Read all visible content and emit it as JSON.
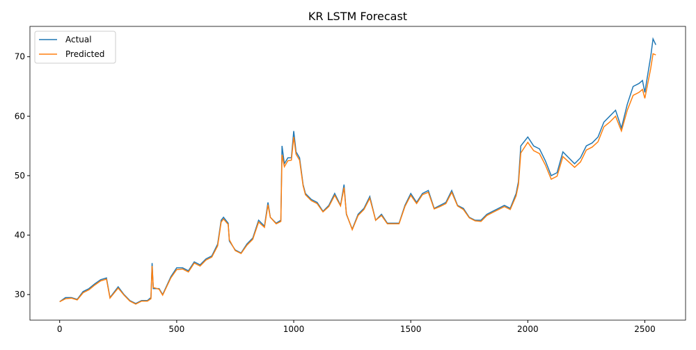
{
  "chart_data": {
    "type": "line",
    "title": "KR LSTM Forecast",
    "x": [
      0,
      25,
      50,
      75,
      100,
      125,
      150,
      175,
      200,
      215,
      250,
      275,
      300,
      325,
      350,
      375,
      390,
      395,
      400,
      425,
      440,
      475,
      500,
      525,
      550,
      575,
      600,
      625,
      650,
      675,
      690,
      700,
      720,
      725,
      750,
      775,
      800,
      825,
      850,
      875,
      890,
      900,
      925,
      945,
      950,
      960,
      975,
      990,
      1000,
      1010,
      1025,
      1040,
      1050,
      1075,
      1100,
      1125,
      1150,
      1175,
      1200,
      1215,
      1225,
      1250,
      1275,
      1300,
      1325,
      1350,
      1375,
      1400,
      1425,
      1450,
      1475,
      1500,
      1525,
      1550,
      1575,
      1600,
      1625,
      1650,
      1675,
      1700,
      1725,
      1750,
      1775,
      1800,
      1825,
      1850,
      1875,
      1900,
      1925,
      1950,
      1960,
      1970,
      2000,
      2025,
      2050,
      2075,
      2100,
      2125,
      2150,
      2175,
      2200,
      2225,
      2250,
      2275,
      2300,
      2325,
      2350,
      2375,
      2400,
      2425,
      2450,
      2475,
      2490,
      2500,
      2525,
      2535,
      2547
    ],
    "series": [
      {
        "name": "Actual",
        "color": "#1f77b4",
        "values": [
          28.8,
          29.5,
          29.5,
          29.2,
          30.5,
          31,
          31.8,
          32.5,
          32.8,
          29.5,
          31.3,
          30,
          29,
          28.5,
          29,
          29,
          29.5,
          35.3,
          31,
          31,
          30,
          33,
          34.5,
          34.5,
          34,
          35.5,
          35,
          36,
          36.5,
          38.5,
          42.5,
          43,
          42,
          39,
          37.5,
          37,
          38.5,
          39.5,
          42.5,
          41.5,
          45.5,
          43,
          42,
          42.5,
          55,
          52,
          53,
          53,
          57.5,
          54,
          53,
          48.5,
          47,
          46,
          45.5,
          44,
          45,
          47,
          45,
          48.5,
          43.5,
          41,
          43.5,
          44.5,
          46.5,
          42.5,
          43.5,
          42,
          42,
          42,
          45,
          47,
          45.5,
          47,
          47.5,
          44.5,
          45,
          45.5,
          47.5,
          45,
          44.5,
          43,
          42.5,
          42.5,
          43.5,
          44,
          44.5,
          45,
          44.5,
          47,
          49,
          55,
          56.5,
          55,
          54.5,
          52.5,
          50,
          50.5,
          54,
          53,
          52,
          53,
          55,
          55.5,
          56.5,
          59,
          60,
          61,
          58,
          62,
          65,
          65.5,
          66,
          64,
          70,
          73,
          72
        ]
      },
      {
        "name": "Predicted",
        "color": "#ff7f0e",
        "values": [
          28.8,
          29.3,
          29.4,
          29.1,
          30.3,
          30.8,
          31.6,
          32.3,
          32.6,
          29.4,
          31.1,
          29.9,
          28.9,
          28.4,
          28.9,
          28.9,
          29.3,
          34.8,
          31.2,
          30.9,
          29.9,
          32.8,
          34.2,
          34.3,
          33.8,
          35.3,
          34.8,
          35.8,
          36.3,
          38.2,
          42.2,
          42.7,
          41.8,
          39.2,
          37.4,
          36.9,
          38.3,
          39.3,
          42.2,
          41.3,
          45.1,
          43,
          41.9,
          42.3,
          53.5,
          51.5,
          52.5,
          52.6,
          56.5,
          53.6,
          52.6,
          48.3,
          46.8,
          45.8,
          45.3,
          43.9,
          44.8,
          46.7,
          44.9,
          48,
          43.6,
          40.9,
          43.3,
          44.3,
          46.2,
          42.5,
          43.3,
          41.9,
          41.9,
          41.9,
          44.8,
          46.7,
          45.3,
          46.8,
          47.2,
          44.4,
          44.8,
          45.3,
          47.2,
          44.9,
          44.3,
          42.9,
          42.4,
          42.3,
          43.3,
          43.8,
          44.3,
          44.8,
          44.3,
          46.6,
          48.5,
          53.8,
          55.6,
          54.2,
          53.7,
          51.8,
          49.4,
          49.9,
          53.2,
          52.3,
          51.4,
          52.3,
          54.3,
          54.8,
          55.7,
          58.2,
          59,
          60,
          57.5,
          61,
          63.5,
          64,
          64.5,
          63,
          68,
          70.5,
          70.3
        ]
      }
    ],
    "xlim": [
      -127,
      2674
    ],
    "ylim": [
      25.7,
      75.1
    ],
    "xticks": [
      0,
      500,
      1000,
      1500,
      2000,
      2500
    ],
    "yticks": [
      30,
      40,
      50,
      60,
      70
    ],
    "legend": "upper left"
  }
}
